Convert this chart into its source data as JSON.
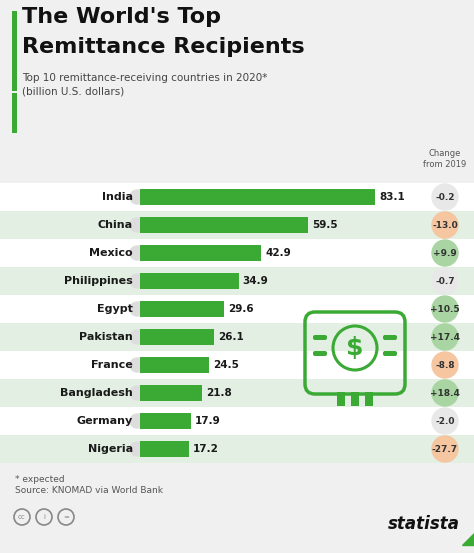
{
  "title_line1": "The World's Top",
  "title_line2": "Remittance Recipients",
  "subtitle_line1": "Top 10 remittance-receiving countries in 2020*",
  "subtitle_line2": "(billion U.S. dollars)",
  "countries": [
    "India",
    "China",
    "Mexico",
    "Philippines",
    "Egypt",
    "Pakistan",
    "France",
    "Bangladesh",
    "Germany",
    "Nigeria"
  ],
  "values": [
    83.1,
    59.5,
    42.9,
    34.9,
    29.6,
    26.1,
    24.5,
    21.8,
    17.9,
    17.2
  ],
  "changes": [
    "-0.2",
    "-13.0",
    "+9.9",
    "-0.7",
    "+10.5",
    "+17.4",
    "-8.8",
    "+18.4",
    "-2.0",
    "-27.7"
  ],
  "change_values": [
    -0.2,
    -13.0,
    9.9,
    -0.7,
    10.5,
    17.4,
    -8.8,
    18.4,
    -2.0,
    -27.7
  ],
  "bar_color": "#3aaa35",
  "bg_color": "#f0f0f0",
  "white": "#ffffff",
  "row_bg_alt": "#e2efe2",
  "row_bg_white": "#f8f8f8",
  "title_green_bar": "#3aaa35",
  "change_header": "Change\nfrom 2019",
  "footnote1": "* expected",
  "footnote2": "Source: KNOMAD via World Bank",
  "footer_text": "statista",
  "bubble_green": "#a8d5a2",
  "bubble_salmon": "#f5c6a0",
  "bubble_neutral": "#e8e8e8"
}
